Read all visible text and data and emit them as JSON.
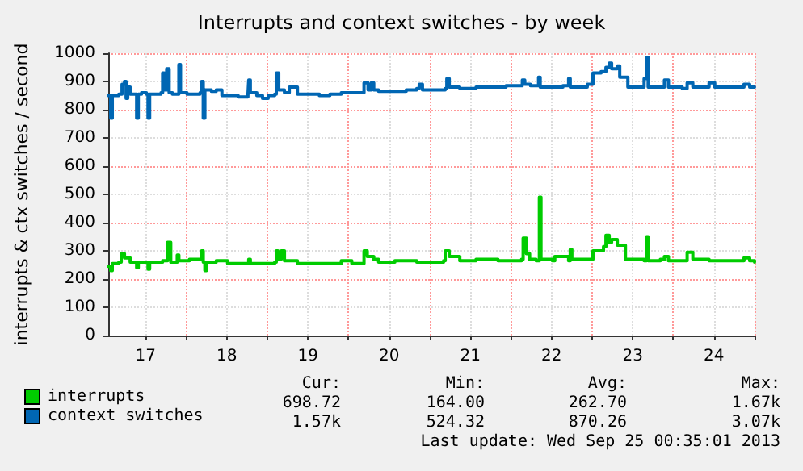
{
  "chart_data": {
    "type": "step",
    "title": "Interrupts and context switches - by week",
    "ylabel": "interrupts & ctx switches / second",
    "xlim": [
      17.04,
      25.0
    ],
    "xticks": [
      {
        "value": 17.5,
        "label": "17"
      },
      {
        "value": 18,
        "label": null
      },
      {
        "value": 18.5,
        "label": "18"
      },
      {
        "value": 19,
        "label": null
      },
      {
        "value": 19.5,
        "label": "19"
      },
      {
        "value": 20,
        "label": null
      },
      {
        "value": 20.5,
        "label": "20"
      },
      {
        "value": 21,
        "label": null
      },
      {
        "value": 21.5,
        "label": "21"
      },
      {
        "value": 22,
        "label": null
      },
      {
        "value": 22.5,
        "label": "22"
      },
      {
        "value": 23,
        "label": null
      },
      {
        "value": 23.5,
        "label": "23"
      },
      {
        "value": 24,
        "label": null
      },
      {
        "value": 24.5,
        "label": "24"
      },
      {
        "value": 25,
        "label": null
      }
    ],
    "ylim": [
      0,
      1000
    ],
    "yticks": [
      0,
      100,
      200,
      300,
      400,
      500,
      600,
      700,
      800,
      900,
      1000
    ],
    "grid": true,
    "legend": "bottom left",
    "marker": "none",
    "line_style": "solid",
    "series": [
      {
        "name": "interrupts",
        "color": "#00cc00",
        "x": [
          17.04,
          17.07,
          17.09,
          17.17,
          17.2,
          17.24,
          17.28,
          17.31,
          17.37,
          17.39,
          17.41,
          17.51,
          17.53,
          17.55,
          17.71,
          17.74,
          17.77,
          17.81,
          17.89,
          17.91,
          18.04,
          18.17,
          18.19,
          18.21,
          18.23,
          18.25,
          18.37,
          18.51,
          18.77,
          18.79,
          18.91,
          19.09,
          19.11,
          19.13,
          19.17,
          19.21,
          19.37,
          19.71,
          19.91,
          20.04,
          20.19,
          20.23,
          20.31,
          20.37,
          20.57,
          20.84,
          21.17,
          21.19,
          21.24,
          21.37,
          21.57,
          21.84,
          22.13,
          22.15,
          22.19,
          22.23,
          22.31,
          22.35,
          22.37,
          22.51,
          22.54,
          22.71,
          22.73,
          22.75,
          22.94,
          23.01,
          23.07,
          23.14,
          23.17,
          23.21,
          23.24,
          23.31,
          23.41,
          23.64,
          23.67,
          23.69,
          23.84,
          23.89,
          23.94,
          24.11,
          24.17,
          24.24,
          24.44,
          24.67,
          24.87,
          24.94,
          25.0
        ],
        "values": [
          245,
          230,
          255,
          260,
          290,
          275,
          275,
          260,
          260,
          240,
          260,
          260,
          235,
          260,
          265,
          265,
          330,
          260,
          285,
          265,
          270,
          270,
          300,
          260,
          230,
          260,
          265,
          255,
          270,
          255,
          255,
          260,
          300,
          270,
          300,
          265,
          255,
          255,
          265,
          255,
          300,
          280,
          270,
          260,
          265,
          260,
          265,
          300,
          280,
          265,
          270,
          265,
          270,
          345,
          290,
          270,
          265,
          490,
          270,
          265,
          280,
          265,
          305,
          270,
          270,
          300,
          300,
          315,
          355,
          330,
          340,
          320,
          270,
          265,
          350,
          265,
          270,
          280,
          265,
          265,
          295,
          270,
          265,
          265,
          275,
          265,
          260
        ]
      },
      {
        "name": "context switches",
        "color": "#0066b3",
        "x": [
          17.04,
          17.07,
          17.09,
          17.17,
          17.21,
          17.24,
          17.26,
          17.28,
          17.31,
          17.37,
          17.39,
          17.41,
          17.45,
          17.51,
          17.53,
          17.55,
          17.64,
          17.69,
          17.71,
          17.73,
          17.76,
          17.79,
          17.83,
          17.91,
          17.93,
          18.01,
          18.17,
          18.19,
          18.21,
          18.23,
          18.31,
          18.37,
          18.44,
          18.64,
          18.76,
          18.77,
          18.79,
          18.87,
          18.94,
          19.01,
          19.09,
          19.11,
          19.14,
          19.21,
          19.27,
          19.37,
          19.51,
          19.64,
          19.77,
          19.91,
          20.04,
          20.17,
          20.19,
          20.24,
          20.28,
          20.31,
          20.37,
          20.57,
          20.71,
          20.84,
          20.87,
          20.91,
          21.04,
          21.19,
          21.21,
          21.24,
          21.37,
          21.57,
          21.71,
          21.84,
          21.94,
          22.11,
          22.14,
          22.17,
          22.24,
          22.34,
          22.36,
          22.44,
          22.64,
          22.71,
          22.73,
          22.87,
          22.94,
          23.01,
          23.11,
          23.17,
          23.21,
          23.24,
          23.31,
          23.34,
          23.44,
          23.61,
          23.64,
          23.67,
          23.69,
          23.84,
          23.89,
          23.94,
          24.11,
          24.17,
          24.24,
          24.37,
          24.44,
          24.51,
          24.67,
          24.87,
          24.94,
          25.0
        ],
        "values": [
          850,
          770,
          850,
          855,
          890,
          900,
          840,
          880,
          855,
          855,
          770,
          855,
          860,
          855,
          770,
          855,
          855,
          860,
          930,
          870,
          945,
          860,
          855,
          960,
          860,
          855,
          860,
          900,
          770,
          870,
          865,
          870,
          850,
          845,
          850,
          905,
          860,
          850,
          840,
          850,
          855,
          930,
          870,
          860,
          880,
          855,
          855,
          850,
          855,
          860,
          860,
          860,
          895,
          870,
          895,
          870,
          865,
          865,
          870,
          875,
          890,
          870,
          870,
          875,
          910,
          880,
          875,
          880,
          880,
          880,
          885,
          885,
          905,
          890,
          885,
          915,
          880,
          880,
          885,
          910,
          880,
          880,
          890,
          930,
          935,
          950,
          965,
          945,
          955,
          915,
          880,
          880,
          910,
          985,
          880,
          880,
          905,
          880,
          875,
          895,
          880,
          880,
          895,
          880,
          880,
          890,
          880,
          880
        ]
      }
    ],
    "annotations": [
      "Cur:",
      "Min:",
      "Avg:",
      "Max:",
      "698.72",
      "164.00",
      "262.70",
      "1.67k",
      "1.57k",
      "524.32",
      "870.26",
      "3.07k",
      "Last update: Wed Sep 25 00:35:01 2013"
    ]
  }
}
